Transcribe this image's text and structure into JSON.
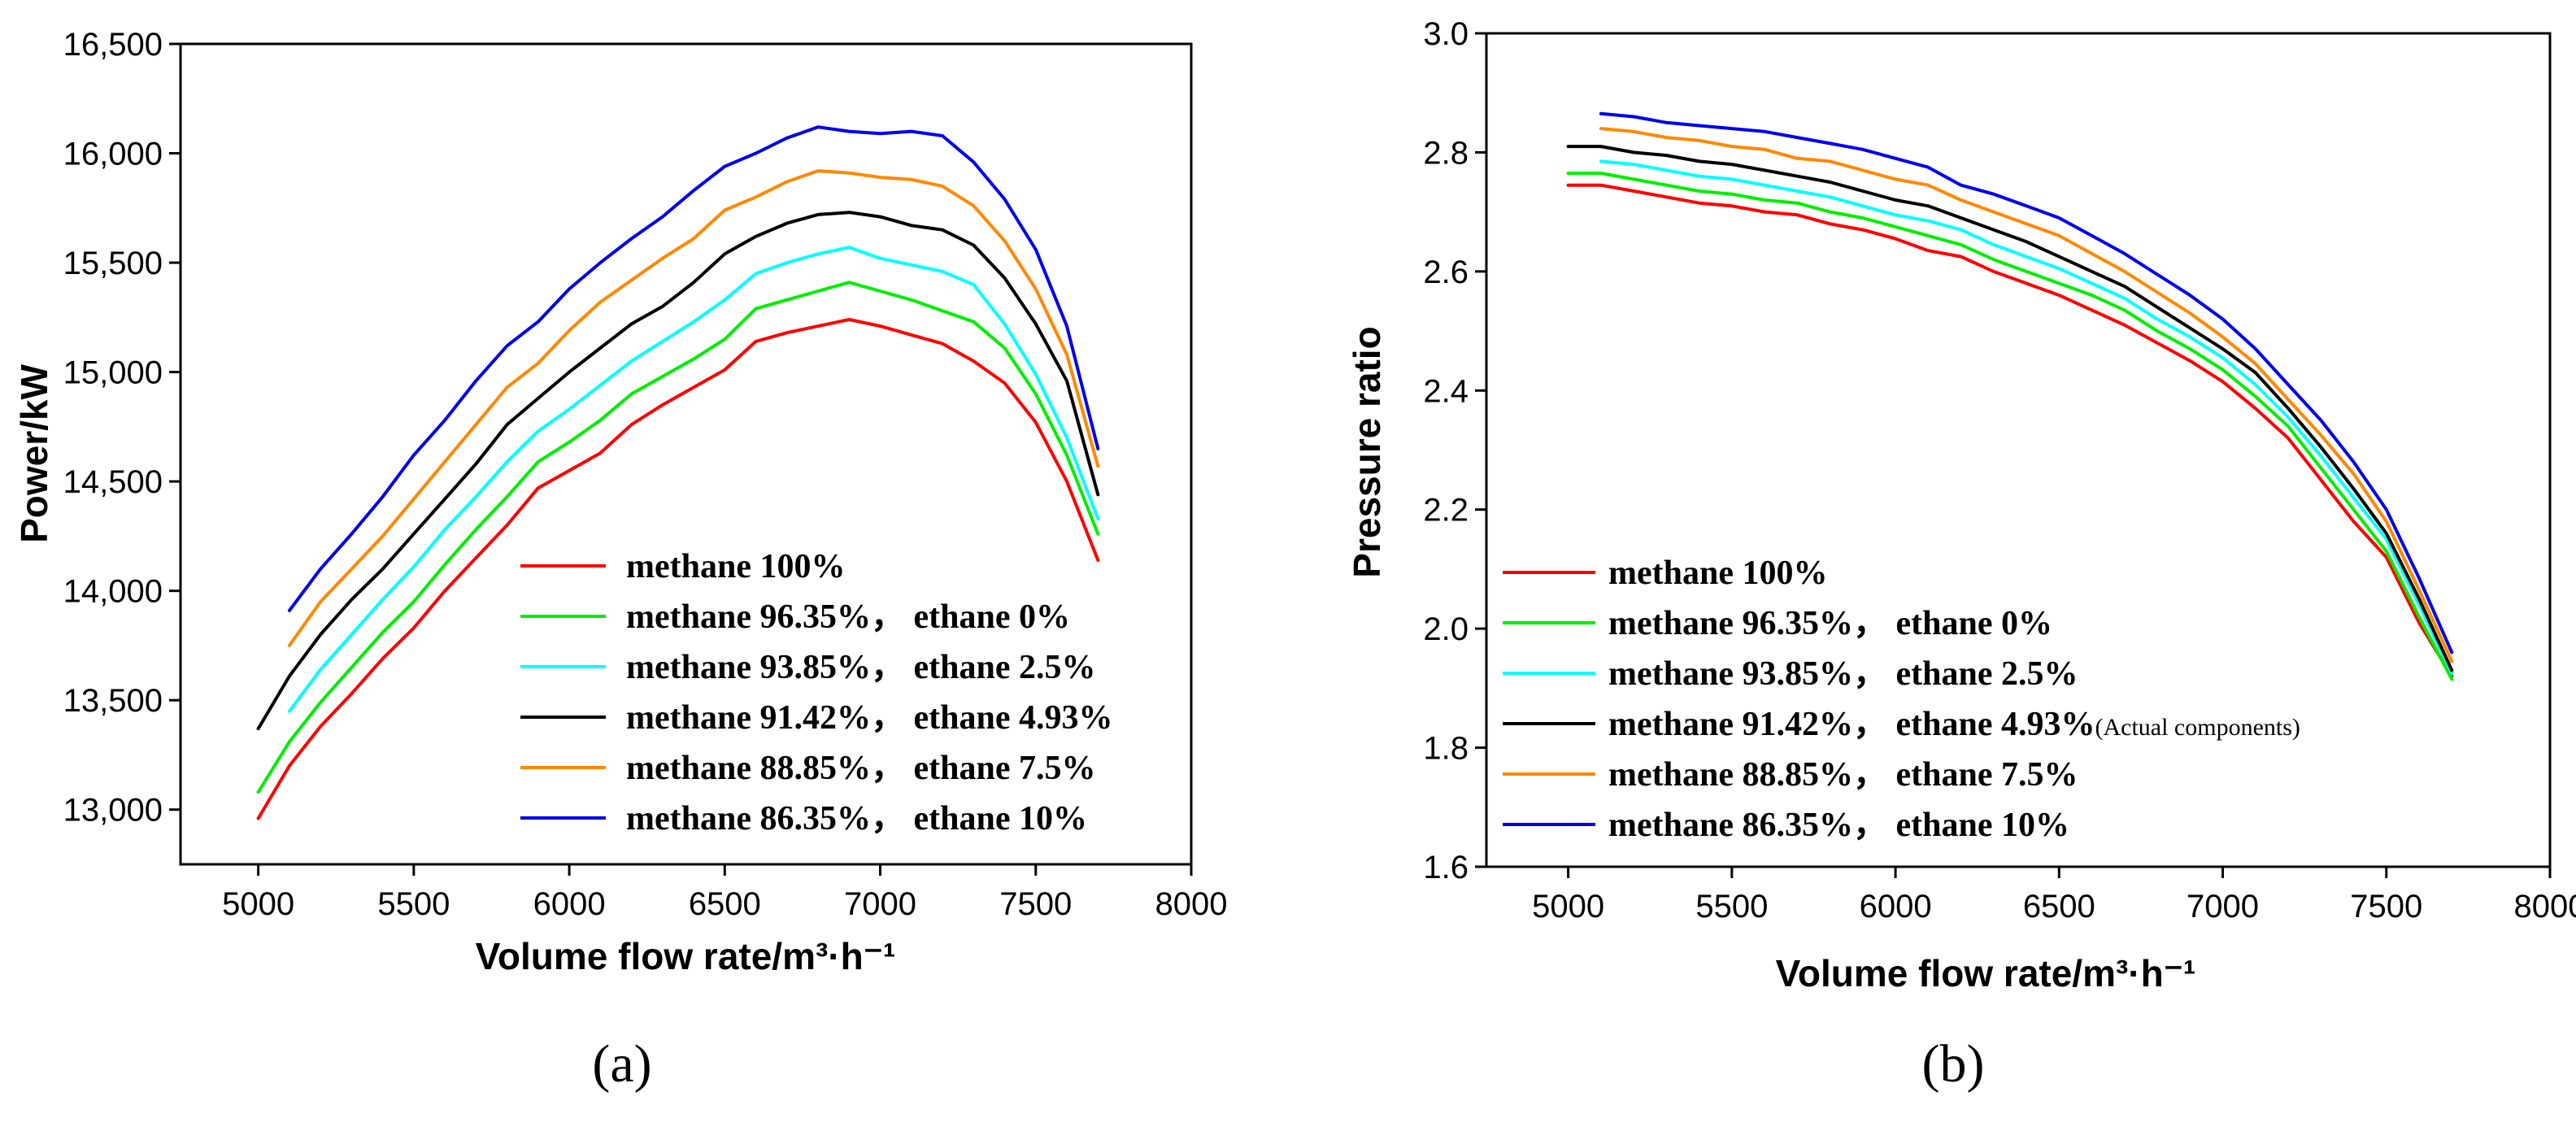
{
  "chart_data": [
    {
      "id": "a",
      "type": "line",
      "panel_label": "(a)",
      "xlabel": "Volume flow rate/m³·h⁻¹",
      "ylabel": "Power/kW",
      "xlim": [
        4750,
        8000
      ],
      "ylim": [
        12750,
        16500
      ],
      "xticks": [
        5000,
        5500,
        6000,
        6500,
        7000,
        7500,
        8000
      ],
      "xtick_labels": [
        "5000",
        "5500",
        "6000",
        "6500",
        "7000",
        "7500",
        "8000"
      ],
      "yticks": [
        13000,
        13500,
        14000,
        14500,
        15000,
        15500,
        16000,
        16500
      ],
      "ytick_labels": [
        "13,000",
        "13,500",
        "14,000",
        "14,500",
        "15,000",
        "15,500",
        "16,000",
        "16,500"
      ],
      "legend_position": "bottom-center",
      "series": [
        {
          "name": "methane 100%",
          "color": "#ff0000",
          "x": [
            5000,
            5100,
            5200,
            5300,
            5400,
            5500,
            5600,
            5700,
            5800,
            5900,
            6000,
            6100,
            6200,
            6300,
            6400,
            6500,
            6600,
            6700,
            6800,
            6900,
            7000,
            7100,
            7200,
            7300,
            7400,
            7500,
            7600,
            7700
          ],
          "y": [
            12960,
            13200,
            13380,
            13530,
            13690,
            13830,
            14000,
            14150,
            14300,
            14470,
            14550,
            14630,
            14760,
            14850,
            14930,
            15010,
            15140,
            15180,
            15210,
            15240,
            15210,
            15170,
            15130,
            15050,
            14950,
            14770,
            14500,
            14140
          ]
        },
        {
          "name": "methane 96.35%， ethane 0%",
          "color": "#00ee00",
          "x": [
            5000,
            5100,
            5200,
            5300,
            5400,
            5500,
            5600,
            5700,
            5800,
            5900,
            6000,
            6100,
            6200,
            6300,
            6400,
            6500,
            6600,
            6700,
            6800,
            6900,
            7000,
            7100,
            7200,
            7300,
            7400,
            7500,
            7600,
            7700
          ],
          "y": [
            13080,
            13310,
            13490,
            13650,
            13810,
            13950,
            14120,
            14280,
            14430,
            14590,
            14680,
            14780,
            14900,
            14980,
            15060,
            15150,
            15290,
            15330,
            15370,
            15410,
            15370,
            15330,
            15280,
            15230,
            15110,
            14900,
            14620,
            14260
          ]
        },
        {
          "name": "methane 93.85%， ethane 2.5%",
          "color": "#00ffff",
          "x": [
            5100,
            5200,
            5300,
            5400,
            5500,
            5600,
            5700,
            5800,
            5900,
            6000,
            6100,
            6200,
            6300,
            6400,
            6500,
            6600,
            6700,
            6800,
            6900,
            7000,
            7100,
            7200,
            7300,
            7400,
            7500,
            7600,
            7700
          ],
          "y": [
            13450,
            13640,
            13800,
            13960,
            14110,
            14280,
            14430,
            14590,
            14730,
            14830,
            14940,
            15050,
            15140,
            15230,
            15330,
            15450,
            15500,
            15540,
            15570,
            15520,
            15490,
            15460,
            15400,
            15220,
            14990,
            14700,
            14330
          ]
        },
        {
          "name": "methane 91.42%， ethane 4.93%",
          "color": "#000000",
          "x": [
            5000,
            5100,
            5200,
            5300,
            5400,
            5500,
            5600,
            5700,
            5800,
            5900,
            6000,
            6100,
            6200,
            6300,
            6400,
            6500,
            6600,
            6700,
            6800,
            6900,
            7000,
            7100,
            7200,
            7300,
            7400,
            7500,
            7600,
            7700
          ],
          "y": [
            13370,
            13610,
            13800,
            13960,
            14100,
            14260,
            14420,
            14580,
            14760,
            14880,
            15000,
            15110,
            15220,
            15300,
            15410,
            15540,
            15620,
            15680,
            15720,
            15730,
            15710,
            15670,
            15650,
            15580,
            15430,
            15220,
            14960,
            14440
          ]
        },
        {
          "name": "methane 88.85%， ethane 7.5%",
          "color": "#ff8800",
          "x": [
            5100,
            5200,
            5300,
            5400,
            5500,
            5600,
            5700,
            5800,
            5900,
            6000,
            6100,
            6200,
            6300,
            6400,
            6500,
            6600,
            6700,
            6800,
            6900,
            7000,
            7100,
            7200,
            7300,
            7400,
            7500,
            7600,
            7700
          ],
          "y": [
            13750,
            13950,
            14100,
            14250,
            14420,
            14590,
            14760,
            14930,
            15040,
            15190,
            15320,
            15420,
            15520,
            15610,
            15740,
            15800,
            15870,
            15920,
            15910,
            15890,
            15880,
            15850,
            15760,
            15600,
            15380,
            15080,
            14570
          ]
        },
        {
          "name": "methane 86.35%， ethane 10%",
          "color": "#0000ee",
          "x": [
            5100,
            5200,
            5300,
            5400,
            5500,
            5600,
            5700,
            5800,
            5900,
            6000,
            6100,
            6200,
            6300,
            6400,
            6500,
            6600,
            6700,
            6800,
            6900,
            7000,
            7100,
            7200,
            7300,
            7400,
            7500,
            7600,
            7700
          ],
          "y": [
            13910,
            14100,
            14260,
            14430,
            14620,
            14780,
            14960,
            15120,
            15230,
            15380,
            15500,
            15610,
            15710,
            15830,
            15940,
            16000,
            16070,
            16120,
            16100,
            16090,
            16100,
            16080,
            15960,
            15790,
            15560,
            15210,
            14650
          ]
        }
      ]
    },
    {
      "id": "b",
      "type": "line",
      "panel_label": "(b)",
      "xlabel": "Volume flow rate/m³·h⁻¹",
      "ylabel": "Pressure ratio",
      "xlim": [
        4750,
        8000
      ],
      "ylim": [
        1.6,
        3.0
      ],
      "xticks": [
        5000,
        5500,
        6000,
        6500,
        7000,
        7500,
        8000
      ],
      "xtick_labels": [
        "5000",
        "5500",
        "6000",
        "6500",
        "7000",
        "7500",
        "8000"
      ],
      "yticks": [
        1.6,
        1.8,
        2.0,
        2.2,
        2.4,
        2.6,
        2.8,
        3.0
      ],
      "ytick_labels": [
        "1.6",
        "1.8",
        "2.0",
        "2.2",
        "2.4",
        "2.6",
        "2.8",
        "3.0"
      ],
      "legend_position": "bottom-left",
      "series": [
        {
          "name": "methane 100%",
          "note": "",
          "color": "#ff0000",
          "x": [
            5000,
            5100,
            5200,
            5300,
            5400,
            5500,
            5600,
            5700,
            5800,
            5900,
            6000,
            6100,
            6200,
            6300,
            6400,
            6500,
            6600,
            6700,
            6800,
            6900,
            7000,
            7100,
            7200,
            7300,
            7400,
            7500,
            7600,
            7700
          ],
          "y": [
            2.745,
            2.745,
            2.735,
            2.725,
            2.715,
            2.71,
            2.7,
            2.695,
            2.68,
            2.67,
            2.655,
            2.635,
            2.625,
            2.6,
            2.58,
            2.56,
            2.535,
            2.51,
            2.48,
            2.45,
            2.415,
            2.37,
            2.32,
            2.25,
            2.18,
            2.12,
            2.01,
            1.92
          ]
        },
        {
          "name": "methane 96.35%， ethane 0%",
          "note": "",
          "color": "#00ee00",
          "x": [
            5000,
            5100,
            5200,
            5300,
            5400,
            5500,
            5600,
            5700,
            5800,
            5900,
            6000,
            6100,
            6200,
            6300,
            6400,
            6500,
            6600,
            6700,
            6800,
            6900,
            7000,
            7100,
            7200,
            7300,
            7400,
            7500,
            7600,
            7700
          ],
          "y": [
            2.765,
            2.765,
            2.755,
            2.745,
            2.735,
            2.73,
            2.72,
            2.715,
            2.7,
            2.69,
            2.675,
            2.66,
            2.645,
            2.62,
            2.6,
            2.58,
            2.56,
            2.535,
            2.5,
            2.47,
            2.435,
            2.39,
            2.34,
            2.27,
            2.2,
            2.13,
            2.02,
            1.915
          ]
        },
        {
          "name": "methane 93.85%， ethane 2.5%",
          "note": "",
          "color": "#00ffff",
          "x": [
            5100,
            5200,
            5300,
            5400,
            5500,
            5600,
            5700,
            5800,
            5900,
            6000,
            6100,
            6200,
            6300,
            6400,
            6500,
            6600,
            6700,
            6800,
            6900,
            7000,
            7100,
            7200,
            7300,
            7400,
            7500,
            7600,
            7700
          ],
          "y": [
            2.785,
            2.78,
            2.77,
            2.76,
            2.755,
            2.745,
            2.735,
            2.725,
            2.71,
            2.695,
            2.685,
            2.67,
            2.645,
            2.625,
            2.605,
            2.58,
            2.555,
            2.52,
            2.49,
            2.455,
            2.41,
            2.355,
            2.29,
            2.22,
            2.15,
            2.04,
            1.925
          ]
        },
        {
          "name": "methane 91.42%， ethane 4.93%",
          "note": "(Actual components)",
          "color": "#000000",
          "x": [
            5000,
            5100,
            5200,
            5300,
            5400,
            5500,
            5600,
            5700,
            5800,
            5900,
            6000,
            6100,
            6200,
            6300,
            6400,
            6500,
            6600,
            6700,
            6800,
            6900,
            7000,
            7100,
            7200,
            7300,
            7400,
            7500,
            7600,
            7700
          ],
          "y": [
            2.81,
            2.81,
            2.8,
            2.795,
            2.785,
            2.78,
            2.77,
            2.76,
            2.75,
            2.735,
            2.72,
            2.71,
            2.69,
            2.67,
            2.65,
            2.625,
            2.6,
            2.575,
            2.54,
            2.505,
            2.47,
            2.43,
            2.37,
            2.305,
            2.235,
            2.16,
            2.05,
            1.93
          ]
        },
        {
          "name": "methane 88.85%， ethane 7.5%",
          "note": "",
          "color": "#ff8800",
          "x": [
            5100,
            5200,
            5300,
            5400,
            5500,
            5600,
            5700,
            5800,
            5900,
            6000,
            6100,
            6200,
            6300,
            6400,
            6500,
            6600,
            6700,
            6800,
            6900,
            7000,
            7100,
            7200,
            7300,
            7400,
            7500,
            7600,
            7700
          ],
          "y": [
            2.84,
            2.835,
            2.825,
            2.82,
            2.81,
            2.805,
            2.79,
            2.785,
            2.77,
            2.755,
            2.745,
            2.72,
            2.7,
            2.68,
            2.66,
            2.63,
            2.6,
            2.565,
            2.53,
            2.49,
            2.445,
            2.385,
            2.325,
            2.26,
            2.18,
            2.065,
            1.945
          ]
        },
        {
          "name": "methane 86.35%， ethane 10%",
          "note": "",
          "color": "#0000ee",
          "x": [
            5100,
            5200,
            5300,
            5400,
            5500,
            5600,
            5700,
            5800,
            5900,
            6000,
            6100,
            6200,
            6300,
            6400,
            6500,
            6600,
            6700,
            6800,
            6900,
            7000,
            7100,
            7200,
            7300,
            7400,
            7500,
            7600,
            7700
          ],
          "y": [
            2.865,
            2.86,
            2.85,
            2.845,
            2.84,
            2.835,
            2.825,
            2.815,
            2.805,
            2.79,
            2.775,
            2.745,
            2.73,
            2.71,
            2.69,
            2.66,
            2.63,
            2.595,
            2.56,
            2.52,
            2.47,
            2.41,
            2.35,
            2.28,
            2.2,
            2.085,
            1.96
          ]
        }
      ]
    }
  ]
}
